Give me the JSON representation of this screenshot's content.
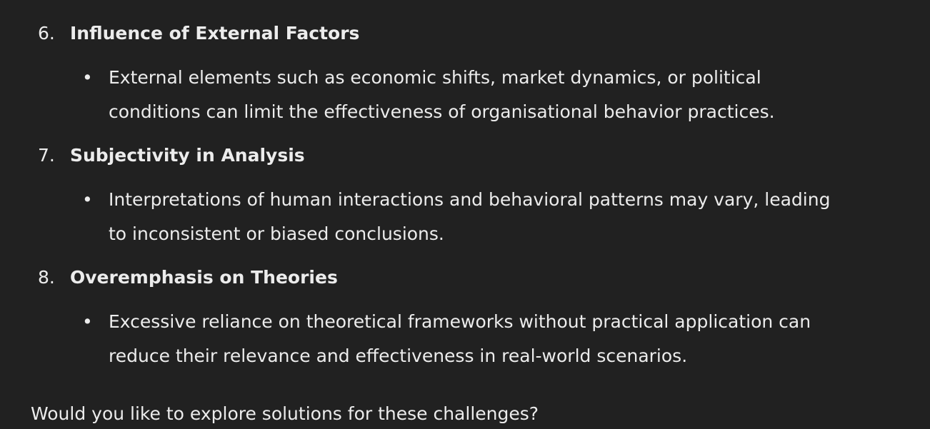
{
  "items": [
    {
      "number": "6.",
      "title": "Influence of External Factors",
      "bullet_line1": "External elements such as economic shifts, market dynamics, or political",
      "bullet_line2": "conditions can limit the effectiveness of organisational behavior practices."
    },
    {
      "number": "7.",
      "title": "Subjectivity in Analysis",
      "bullet_line1": "Interpretations of human interactions and behavioral patterns may vary, leading",
      "bullet_line2": "to inconsistent or biased conclusions."
    },
    {
      "number": "8.",
      "title": "Overemphasis on Theories",
      "bullet_line1": "Excessive reliance on theoretical frameworks without practical application can",
      "bullet_line2": "reduce their relevance and effectiveness in real-world scenarios."
    }
  ],
  "bullet_glyph": "•",
  "footer_question": "Would you like to explore solutions for these challenges?"
}
